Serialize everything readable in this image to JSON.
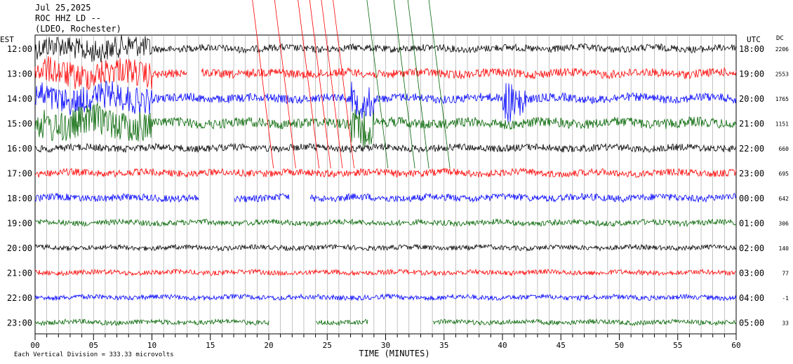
{
  "header": {
    "date": "Jul 25,2025",
    "station": "ROC HHZ LD --",
    "location": "(LDEO, Rochester)"
  },
  "chart_data": {
    "type": "line",
    "title": "Jul 25,2025",
    "xlabel": "TIME (MINUTES)",
    "left_axis_label": "EST",
    "right_axis_label": "UTC",
    "dc_label": "DC",
    "footnote": "Each Vertical Division = 333.33 microvolts",
    "xlim": [
      0,
      60
    ],
    "x_ticks": [
      "00",
      "05",
      "10",
      "15",
      "20",
      "25",
      "30",
      "35",
      "40",
      "45",
      "50",
      "55",
      "60"
    ],
    "trace_colors": [
      "#000000",
      "#ff0000",
      "#0000ff",
      "#006400"
    ],
    "rows": [
      {
        "est": "12:00",
        "utc": "18:00",
        "dc": "2206",
        "color": "#000000"
      },
      {
        "est": "13:00",
        "utc": "19:00",
        "dc": "2553",
        "color": "#ff0000"
      },
      {
        "est": "14:00",
        "utc": "20:00",
        "dc": "1765",
        "color": "#0000ff"
      },
      {
        "est": "15:00",
        "utc": "21:00",
        "dc": "1151",
        "color": "#006400"
      },
      {
        "est": "16:00",
        "utc": "22:00",
        "dc": "660",
        "color": "#000000"
      },
      {
        "est": "17:00",
        "utc": "23:00",
        "dc": "695",
        "color": "#ff0000"
      },
      {
        "est": "18:00",
        "utc": "00:00",
        "dc": "642",
        "color": "#0000ff"
      },
      {
        "est": "19:00",
        "utc": "01:00",
        "dc": "306",
        "color": "#006400"
      },
      {
        "est": "20:00",
        "utc": "02:00",
        "dc": "140",
        "color": "#000000"
      },
      {
        "est": "21:00",
        "utc": "03:00",
        "dc": "77",
        "color": "#ff0000"
      },
      {
        "est": "22:00",
        "utc": "04:00",
        "dc": "-1",
        "color": "#0000ff"
      },
      {
        "est": "23:00",
        "utc": "05:00",
        "dc": "33",
        "color": "#006400"
      }
    ]
  }
}
